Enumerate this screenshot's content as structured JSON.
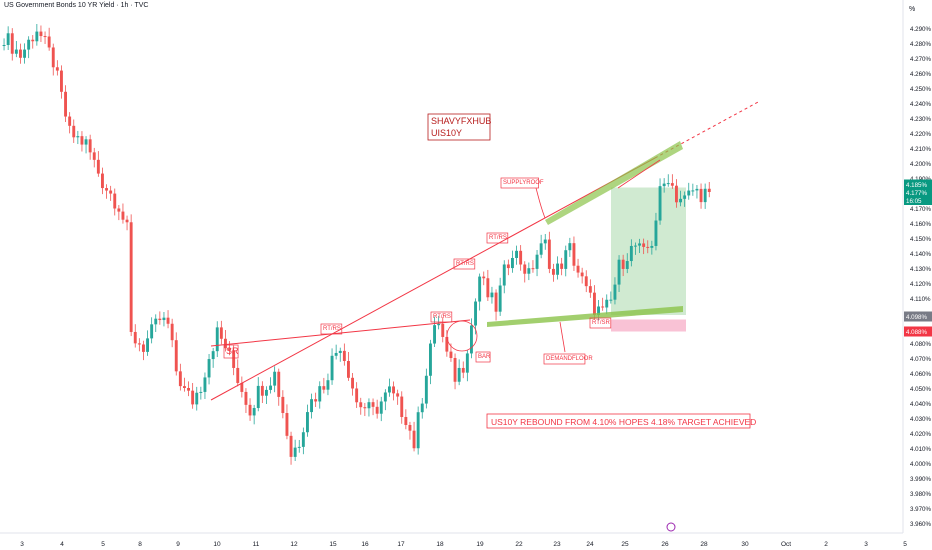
{
  "header": {
    "title": "US Government Bonds 10 YR Yield · 1h · TVC",
    "unit": "%"
  },
  "colors": {
    "up": "#26a69a",
    "down": "#ef5350",
    "trendline": "#f23645",
    "support": "#8bc34a",
    "target_zone": "#c8e6c9",
    "stop_zone": "#f8bbd0",
    "current_price": "#089981",
    "last_close_gray": "#787b86",
    "reference_price": "#f23645"
  },
  "chart_data": {
    "type": "candlestick",
    "title": "US Government Bonds 10 YR Yield · 1h · TVC",
    "ylabel": "%",
    "ylim": [
      3.955,
      4.305
    ],
    "y_ticks": [
      "4.290%",
      "4.280%",
      "4.270%",
      "4.260%",
      "4.250%",
      "4.240%",
      "4.230%",
      "4.220%",
      "4.210%",
      "4.200%",
      "4.190%",
      "4.180%",
      "4.170%",
      "4.160%",
      "4.150%",
      "4.140%",
      "4.130%",
      "4.120%",
      "4.110%",
      "4.100%",
      "4.090%",
      "4.080%",
      "4.070%",
      "4.060%",
      "4.050%",
      "4.040%",
      "4.030%",
      "4.020%",
      "4.010%",
      "4.000%",
      "3.990%",
      "3.980%",
      "3.970%",
      "3.960%"
    ],
    "x_ticks": [
      "3",
      "4",
      "5",
      "8",
      "9",
      "10",
      "11",
      "12",
      "15",
      "16",
      "17",
      "18",
      "19",
      "22",
      "23",
      "24",
      "25",
      "26",
      "28",
      "30",
      "Oct",
      "2",
      "3",
      "5"
    ],
    "price_path": [
      [
        0,
        4.285
      ],
      [
        4,
        4.272
      ],
      [
        8,
        4.29
      ],
      [
        12,
        4.268
      ],
      [
        16,
        4.22
      ],
      [
        20,
        4.213
      ],
      [
        24,
        4.188
      ],
      [
        28,
        4.172
      ],
      [
        30,
        4.155
      ],
      [
        31,
        4.085
      ],
      [
        34,
        4.078
      ],
      [
        38,
        4.096
      ],
      [
        40,
        4.092
      ],
      [
        42,
        4.062
      ],
      [
        44,
        4.048
      ],
      [
        46,
        4.042
      ],
      [
        48,
        4.052
      ],
      [
        50,
        4.072
      ],
      [
        52,
        4.087
      ],
      [
        54,
        4.078
      ],
      [
        56,
        4.064
      ],
      [
        58,
        4.05
      ],
      [
        60,
        4.036
      ],
      [
        62,
        4.048
      ],
      [
        66,
        4.06
      ],
      [
        68,
        4.035
      ],
      [
        70,
        4.006
      ],
      [
        72,
        4.015
      ],
      [
        74,
        4.038
      ],
      [
        78,
        4.053
      ],
      [
        80,
        4.069
      ],
      [
        82,
        4.08
      ],
      [
        84,
        4.062
      ],
      [
        86,
        4.041
      ],
      [
        90,
        4.034
      ],
      [
        94,
        4.048
      ],
      [
        98,
        4.031
      ],
      [
        100,
        4.013
      ],
      [
        102,
        4.045
      ],
      [
        104,
        4.08
      ],
      [
        106,
        4.095
      ],
      [
        108,
        4.072
      ],
      [
        110,
        4.058
      ],
      [
        112,
        4.066
      ],
      [
        114,
        4.092
      ],
      [
        116,
        4.125
      ],
      [
        118,
        4.112
      ],
      [
        120,
        4.104
      ],
      [
        122,
        4.127
      ],
      [
        124,
        4.143
      ],
      [
        126,
        4.135
      ],
      [
        128,
        4.125
      ],
      [
        130,
        4.14
      ],
      [
        132,
        4.146
      ],
      [
        134,
        4.125
      ],
      [
        136,
        4.134
      ],
      [
        138,
        4.143
      ],
      [
        140,
        4.128
      ],
      [
        142,
        4.115
      ],
      [
        144,
        4.104
      ],
      [
        146,
        4.1
      ],
      [
        148,
        4.108
      ],
      [
        150,
        4.131
      ],
      [
        152,
        4.14
      ],
      [
        154,
        4.145
      ],
      [
        156,
        4.139
      ],
      [
        158,
        4.148
      ],
      [
        160,
        4.18
      ],
      [
        162,
        4.192
      ],
      [
        164,
        4.178
      ],
      [
        166,
        4.176
      ],
      [
        168,
        4.182
      ],
      [
        170,
        4.18
      ],
      [
        172,
        4.181
      ]
    ],
    "last_price": 4.177,
    "current_label": "4.185%",
    "current_sublabel": "4.177%",
    "countdown": "16:05",
    "gray_label": "4.098%",
    "red_label": "4.088%",
    "annotations": {
      "brand_line1": "SHAVYFXHUB",
      "brand_line2": "UIS10Y",
      "sr_box": "SR",
      "bar_tag": "BAR",
      "supply": "SUPPLYROOF",
      "demand": "DEMANDFLOOR",
      "rtrs_labels": [
        "RT/RS",
        "RT/RS",
        "RT/RS",
        "RT/RS"
      ],
      "rtsr_label": "RT/SR",
      "headline": "US10Y   REBOUND FROM 4.10%   HOPES 4.18% TARGET ACHIEVED"
    }
  }
}
